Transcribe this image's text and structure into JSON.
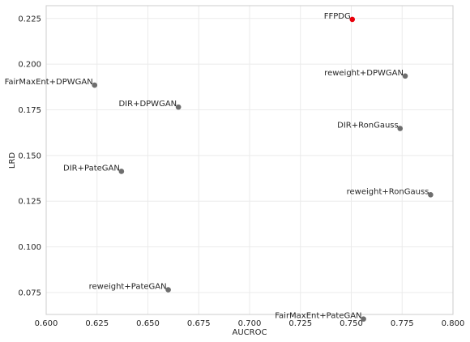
{
  "chart_data": {
    "type": "scatter",
    "title": "",
    "xlabel": "AUCROC",
    "ylabel": "LRD",
    "xlim": [
      0.6,
      0.8
    ],
    "ylim": [
      0.063,
      0.232
    ],
    "grid": true,
    "x_ticks": [
      "0.600",
      "0.625",
      "0.650",
      "0.675",
      "0.700",
      "0.725",
      "0.750",
      "0.775",
      "0.800"
    ],
    "y_ticks": [
      "0.075",
      "0.100",
      "0.125",
      "0.150",
      "0.175",
      "0.200",
      "0.225"
    ],
    "colors": {
      "highlight": "#e8000b",
      "default": "#6e6e6e",
      "grid": "#ebebeb",
      "frame": "#cccccc"
    },
    "points": [
      {
        "label": "FFPDG",
        "x": 0.7505,
        "y": 0.2245,
        "highlight": true
      },
      {
        "label": "reweight+DPWGAN",
        "x": 0.7765,
        "y": 0.1935,
        "highlight": false
      },
      {
        "label": "FairMaxEnt+DPWGAN",
        "x": 0.6238,
        "y": 0.1885,
        "highlight": false
      },
      {
        "label": "DIR+DPWGAN",
        "x": 0.665,
        "y": 0.1765,
        "highlight": false
      },
      {
        "label": "DIR+RonGauss",
        "x": 0.774,
        "y": 0.1648,
        "highlight": false
      },
      {
        "label": "DIR+PateGAN",
        "x": 0.637,
        "y": 0.1413,
        "highlight": false
      },
      {
        "label": "reweight+RonGauss",
        "x": 0.789,
        "y": 0.1285,
        "highlight": false
      },
      {
        "label": "reweight+PateGAN",
        "x": 0.66,
        "y": 0.0765,
        "highlight": false
      },
      {
        "label": "FairMaxEnt+PateGAN",
        "x": 0.756,
        "y": 0.0605,
        "highlight": false
      }
    ]
  }
}
